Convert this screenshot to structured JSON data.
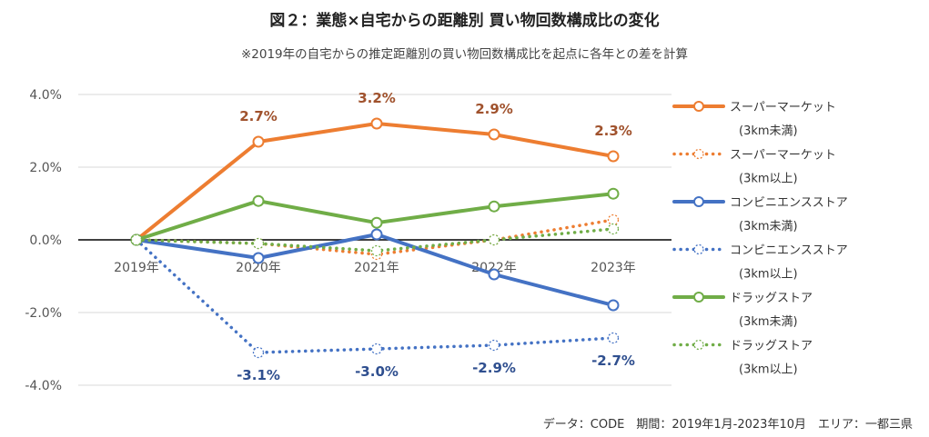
{
  "title": "図２：業態×自宅からの距離別 買い物回数構成比の変化",
  "subtitle": "※2019年の自宅からの推定距離別の買い物回数構成比を起点に各年との差を計算",
  "footer": "データ：CODE　期間：2019年1月-2023年10月　エリア：一都三県",
  "chart_data": {
    "type": "line",
    "categories": [
      "2019年",
      "2020年",
      "2021年",
      "2022年",
      "2023年"
    ],
    "y_ticks": [
      "4.0%",
      "2.0%",
      "0.0%",
      "-2.0%",
      "-4.0%"
    ],
    "ylim": [
      -4.0,
      4.0
    ],
    "unit": "%",
    "grid": true,
    "legend_position": "right",
    "series": [
      {
        "name_line1": "スーパーマーケット",
        "name_line2": "(3km未満)",
        "color": "#ED7D31",
        "dashed": false,
        "values": [
          0.0,
          2.7,
          3.2,
          2.9,
          2.3
        ],
        "labels": [
          "",
          "2.7%",
          "3.2%",
          "2.9%",
          "2.3%"
        ],
        "label_color": "#A0522D",
        "label_pos": "above"
      },
      {
        "name_line1": "スーパーマーケット",
        "name_line2": "(3km以上)",
        "color": "#ED7D31",
        "dashed": true,
        "values": [
          0.0,
          -0.1,
          -0.4,
          0.0,
          0.55
        ],
        "labels": [
          "",
          "",
          "",
          "",
          ""
        ]
      },
      {
        "name_line1": "コンビニエンスストア",
        "name_line2": "(3km未満)",
        "color": "#4472C4",
        "dashed": false,
        "values": [
          0.0,
          -0.5,
          0.15,
          -0.95,
          -1.8
        ],
        "labels": [
          "",
          "",
          "",
          "",
          ""
        ]
      },
      {
        "name_line1": "コンビニエンスストア",
        "name_line2": "(3km以上)",
        "color": "#4472C4",
        "dashed": true,
        "values": [
          0.0,
          -3.1,
          -3.0,
          -2.9,
          -2.7
        ],
        "labels": [
          "",
          "-3.1%",
          "-3.0%",
          "-2.9%",
          "-2.7%"
        ],
        "label_color": "#2F4F8F",
        "label_pos": "below"
      },
      {
        "name_line1": "ドラッグストア",
        "name_line2": "(3km未満)",
        "color": "#70AD47",
        "dashed": false,
        "values": [
          0.0,
          1.07,
          0.47,
          0.92,
          1.27
        ],
        "labels": [
          "",
          "",
          "",
          "",
          ""
        ]
      },
      {
        "name_line1": "ドラッグストア",
        "name_line2": "(3km以上)",
        "color": "#70AD47",
        "dashed": true,
        "values": [
          0.0,
          -0.1,
          -0.3,
          0.0,
          0.3
        ],
        "labels": [
          "",
          "",
          "",
          "",
          ""
        ]
      }
    ]
  }
}
